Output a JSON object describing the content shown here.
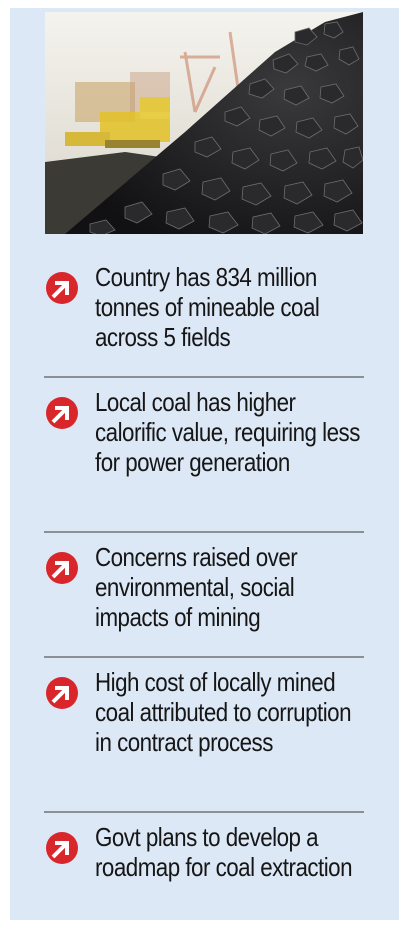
{
  "image": {
    "subject": "coal-pile-photo"
  },
  "colors": {
    "panel_background": "#dde8f6",
    "bullet_red": "#d8262b",
    "divider": "#8a9096",
    "text": "#161616"
  },
  "bullet_icon": "red-circle-arrow-icon",
  "items": [
    {
      "text": "Country has 834 million tonnes of mineable coal across 5 fields"
    },
    {
      "text": "Local coal has higher calorific value, requiring less for power generation"
    },
    {
      "text": "Concerns raised over environmental, social impacts of mining"
    },
    {
      "text": "High cost of locally mined coal attributed to corruption in contract process"
    },
    {
      "text": "Govt plans to develop a roadmap for coal extraction"
    }
  ]
}
